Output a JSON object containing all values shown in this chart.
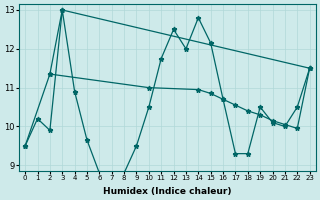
{
  "xlabel": "Humidex (Indice chaleur)",
  "bg_color": "#ceeaea",
  "line_color": "#006666",
  "grid_color": "#b0d8d8",
  "ylim": [
    9,
    13
  ],
  "xlim": [
    -0.5,
    23.5
  ],
  "yticks": [
    9,
    10,
    11,
    12,
    13
  ],
  "xticks": [
    0,
    1,
    2,
    3,
    4,
    5,
    6,
    7,
    8,
    9,
    10,
    11,
    12,
    13,
    14,
    15,
    16,
    17,
    18,
    19,
    20,
    21,
    22,
    23
  ],
  "line1_x": [
    0,
    1,
    2,
    3,
    4,
    5,
    6,
    7,
    8,
    9,
    10,
    11,
    12,
    13,
    14,
    15,
    16,
    17,
    18,
    19,
    20,
    21,
    22,
    23
  ],
  "line1_y": [
    9.5,
    10.2,
    9.9,
    13.0,
    10.9,
    9.65,
    8.8,
    8.7,
    8.8,
    9.5,
    10.5,
    11.75,
    12.5,
    12.0,
    12.8,
    12.15,
    10.7,
    9.3,
    9.3,
    10.5,
    10.1,
    10.0,
    10.5,
    11.5
  ],
  "line2_x": [
    2,
    3,
    23
  ],
  "line2_y": [
    11.35,
    13.0,
    11.5
  ],
  "line3_x": [
    0,
    2,
    10,
    14,
    15,
    16,
    17,
    18,
    19,
    20,
    21,
    22,
    23
  ],
  "line3_y": [
    9.5,
    11.35,
    11.0,
    10.95,
    10.85,
    10.7,
    10.55,
    10.4,
    10.3,
    10.15,
    10.05,
    9.95,
    11.5
  ]
}
